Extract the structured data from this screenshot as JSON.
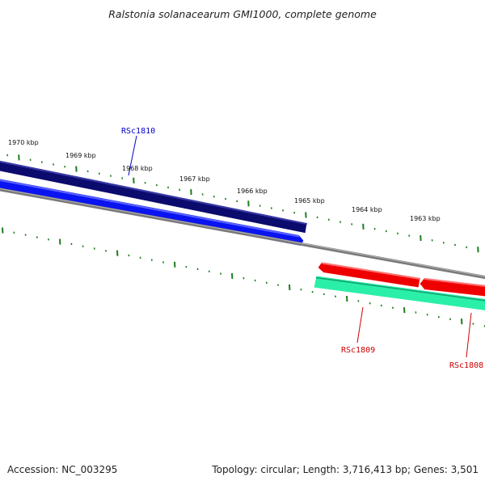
{
  "title": "Ralstonia solanacearum GMI1000, complete genome",
  "footer": {
    "accession": "Accession: NC_003295",
    "summary": "Topology: circular; Length: 3,716,413 bp; Genes: 3,501"
  },
  "colors": {
    "tick": "#1e7d1e",
    "backbone": "#7a7a7a",
    "forward_cds_dark": "#0b0b6e",
    "forward_cds": "#0a14f0",
    "reverse_cds": "#ee0000",
    "rna_feature": "#2aefa8",
    "forward_label": "#0000cc",
    "reverse_label": "#cc0000"
  },
  "ticks": [
    {
      "label": "1970 kbp"
    },
    {
      "label": "1969 kbp"
    },
    {
      "label": "1968 kbp"
    },
    {
      "label": "1967 kbp"
    },
    {
      "label": "1966 kbp"
    },
    {
      "label": "1965 kbp"
    },
    {
      "label": "1964 kbp"
    },
    {
      "label": "1963 kbp"
    }
  ],
  "genes": [
    {
      "id": "RSc1810",
      "strand": "forward"
    },
    {
      "id": "RSc1809",
      "strand": "reverse"
    },
    {
      "id": "RSc1808",
      "strand": "reverse"
    }
  ]
}
